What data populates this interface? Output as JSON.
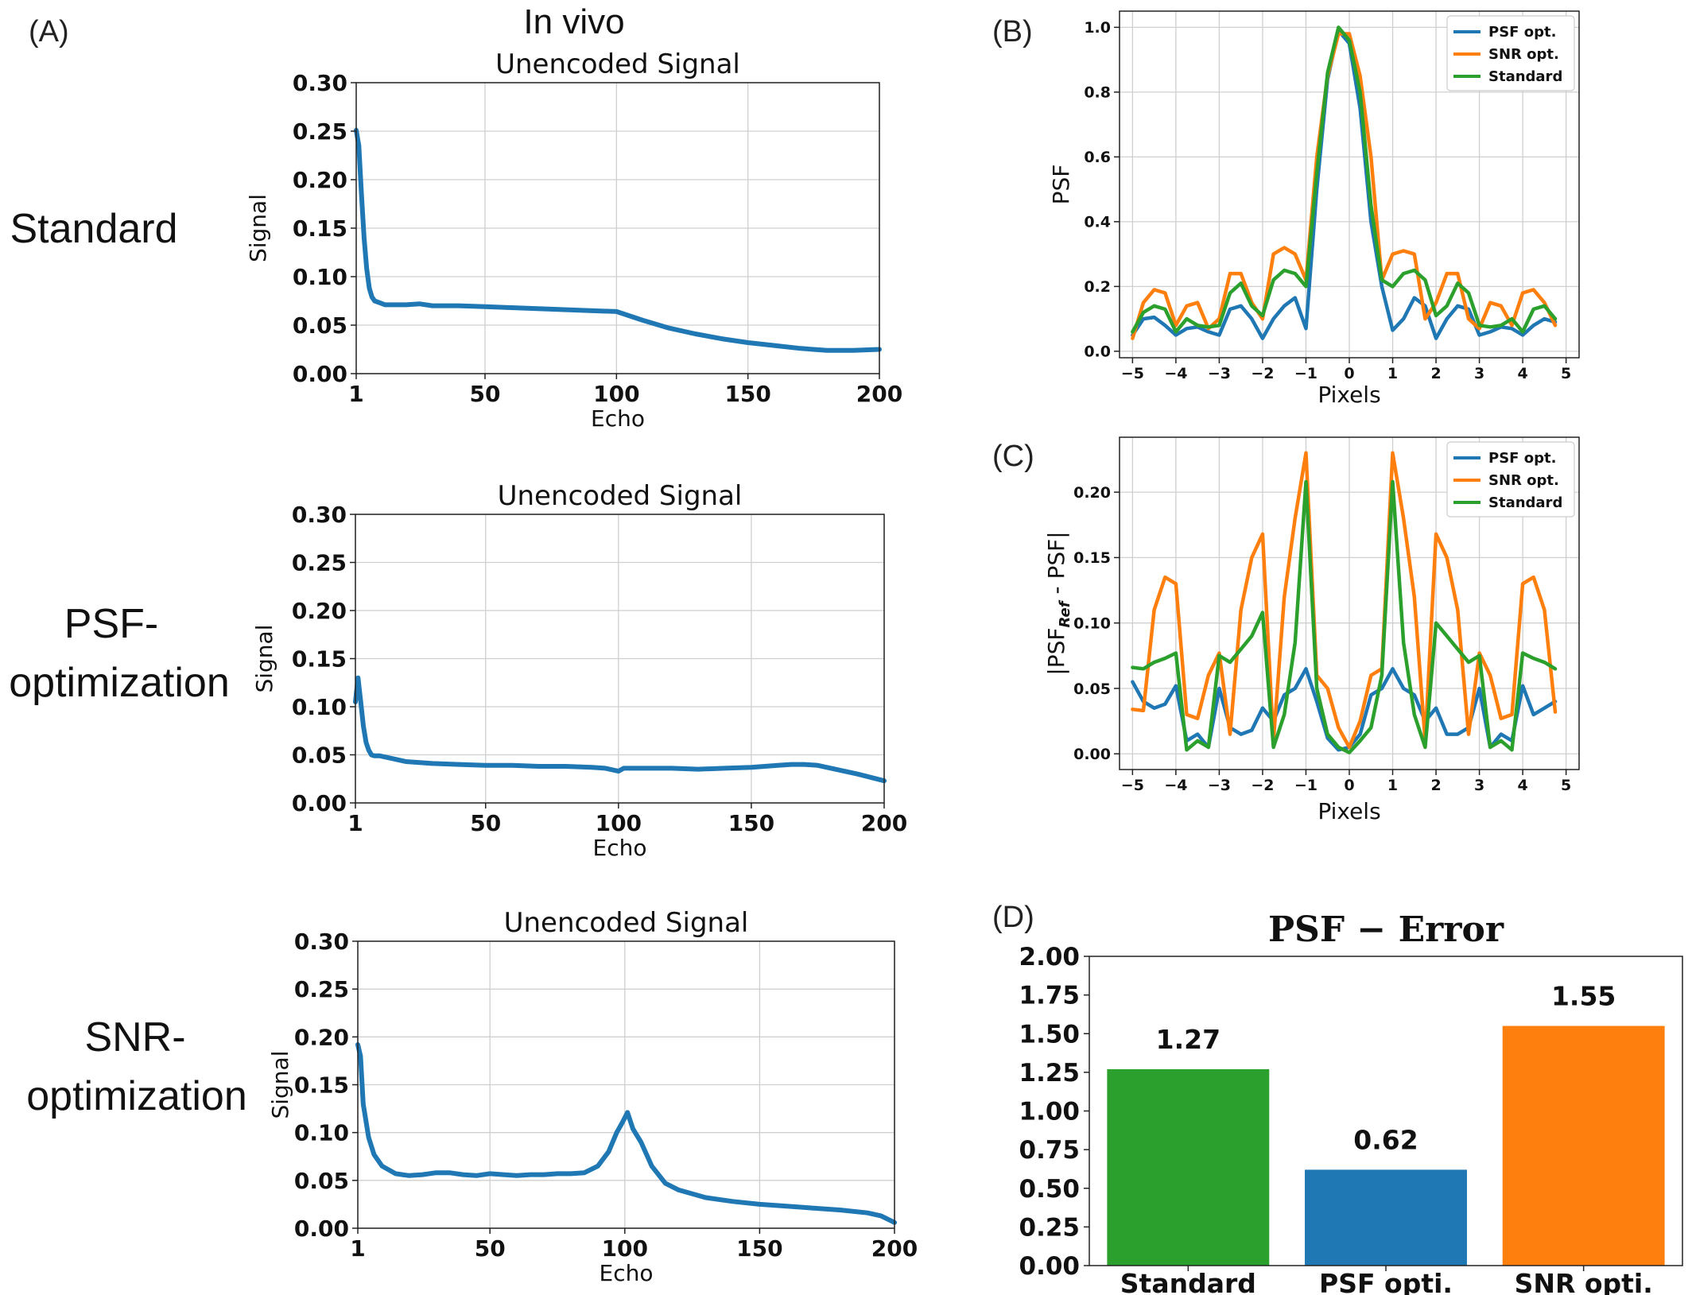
{
  "figure": {
    "super_title": "In vivo",
    "panel_labels": [
      "(A)",
      "(B)",
      "(C)",
      "(D)"
    ],
    "row_labels": [
      [
        "Standard"
      ],
      [
        "PSF-",
        "optimization"
      ],
      [
        "SNR-",
        "optimization"
      ]
    ]
  },
  "colors": {
    "blue": "#1f77b4",
    "orange": "#ff7f0e",
    "green": "#2ca02c"
  },
  "chart_data": [
    {
      "type": "line",
      "panel": "(A)",
      "row": "Standard",
      "title": "Unencoded Signal",
      "xlabel": "Echo",
      "ylabel": "Signal",
      "xlim": [
        1,
        200
      ],
      "ylim": [
        0,
        0.3
      ],
      "xticks": [
        1,
        50,
        100,
        150,
        200
      ],
      "yticks": [
        0.0,
        0.05,
        0.1,
        0.15,
        0.2,
        0.25,
        0.3
      ],
      "grid": true,
      "series": [
        {
          "color": "#1f77b4",
          "x": [
            1,
            2,
            3,
            4,
            5,
            6,
            7,
            8,
            10,
            12,
            15,
            20,
            25,
            30,
            35,
            40,
            50,
            60,
            70,
            80,
            90,
            100,
            110,
            120,
            130,
            140,
            150,
            160,
            170,
            180,
            190,
            200
          ],
          "y": [
            0.251,
            0.235,
            0.185,
            0.14,
            0.108,
            0.088,
            0.079,
            0.075,
            0.073,
            0.071,
            0.071,
            0.071,
            0.072,
            0.07,
            0.07,
            0.07,
            0.069,
            0.068,
            0.067,
            0.066,
            0.065,
            0.064,
            0.055,
            0.047,
            0.041,
            0.036,
            0.032,
            0.029,
            0.026,
            0.024,
            0.024,
            0.025
          ]
        }
      ]
    },
    {
      "type": "line",
      "panel": "(A)",
      "row": "PSF-optimization",
      "title": "Unencoded Signal",
      "xlabel": "Echo",
      "ylabel": "Signal",
      "xlim": [
        1,
        200
      ],
      "ylim": [
        0,
        0.3
      ],
      "xticks": [
        1,
        50,
        100,
        150,
        200
      ],
      "yticks": [
        0.0,
        0.05,
        0.1,
        0.15,
        0.2,
        0.25,
        0.3
      ],
      "grid": true,
      "series": [
        {
          "color": "#1f77b4",
          "x": [
            1,
            2,
            3,
            4,
            5,
            6,
            7,
            8,
            10,
            15,
            20,
            30,
            40,
            50,
            60,
            70,
            80,
            90,
            95,
            100,
            102,
            105,
            110,
            120,
            130,
            140,
            150,
            160,
            165,
            170,
            175,
            180,
            190,
            200
          ],
          "y": [
            0.105,
            0.13,
            0.105,
            0.08,
            0.063,
            0.055,
            0.05,
            0.049,
            0.049,
            0.046,
            0.043,
            0.041,
            0.04,
            0.039,
            0.039,
            0.038,
            0.038,
            0.037,
            0.036,
            0.033,
            0.036,
            0.036,
            0.036,
            0.036,
            0.035,
            0.036,
            0.037,
            0.039,
            0.04,
            0.04,
            0.039,
            0.036,
            0.03,
            0.023
          ]
        }
      ]
    },
    {
      "type": "line",
      "panel": "(A)",
      "row": "SNR-optimization",
      "title": "Unencoded Signal",
      "xlabel": "Echo",
      "ylabel": "Signal",
      "xlim": [
        1,
        200
      ],
      "ylim": [
        0,
        0.3
      ],
      "xticks": [
        1,
        50,
        100,
        150,
        200
      ],
      "yticks": [
        0.0,
        0.05,
        0.1,
        0.15,
        0.2,
        0.25,
        0.3
      ],
      "grid": true,
      "series": [
        {
          "color": "#1f77b4",
          "x": [
            1,
            2,
            3,
            5,
            7,
            10,
            15,
            20,
            25,
            30,
            35,
            40,
            45,
            50,
            55,
            60,
            65,
            70,
            75,
            80,
            85,
            90,
            94,
            97,
            99,
            101,
            103,
            106,
            110,
            115,
            120,
            130,
            140,
            150,
            160,
            170,
            180,
            190,
            195,
            200
          ],
          "y": [
            0.192,
            0.18,
            0.13,
            0.095,
            0.077,
            0.065,
            0.057,
            0.055,
            0.056,
            0.058,
            0.058,
            0.056,
            0.055,
            0.057,
            0.056,
            0.055,
            0.056,
            0.056,
            0.057,
            0.057,
            0.058,
            0.065,
            0.08,
            0.1,
            0.11,
            0.121,
            0.104,
            0.09,
            0.065,
            0.047,
            0.04,
            0.032,
            0.028,
            0.025,
            0.023,
            0.021,
            0.019,
            0.016,
            0.013,
            0.006
          ]
        }
      ]
    },
    {
      "type": "line",
      "panel": "(B)",
      "xlabel": "Pixels",
      "ylabel": "PSF",
      "xlim": [
        -5.3,
        5.3
      ],
      "ylim": [
        -0.02,
        1.05
      ],
      "xticks": [
        -5,
        -4,
        -3,
        -2,
        -1,
        0,
        1,
        2,
        3,
        4,
        5
      ],
      "xtick_labels": [
        "−5",
        "−4",
        "−3",
        "−2",
        "−1",
        "0",
        "1",
        "2",
        "3",
        "4",
        "5"
      ],
      "yticks": [
        0.0,
        0.2,
        0.4,
        0.6,
        0.8,
        1.0
      ],
      "grid": true,
      "legend": "top-right",
      "series": [
        {
          "name": "PSF opt.",
          "color": "#1f77b4",
          "x": [
            -5,
            -4.75,
            -4.5,
            -4.25,
            -4,
            -3.75,
            -3.5,
            -3.25,
            -3,
            -2.75,
            -2.5,
            -2.25,
            -2,
            -1.75,
            -1.5,
            -1.25,
            -1,
            -0.75,
            -0.5,
            -0.25,
            0,
            0.25,
            0.5,
            0.75,
            1,
            1.25,
            1.5,
            1.75,
            2,
            2.25,
            2.5,
            2.75,
            3,
            3.25,
            3.5,
            3.75,
            4,
            4.25,
            4.5,
            4.75
          ],
          "y": [
            0.05,
            0.1,
            0.105,
            0.08,
            0.05,
            0.07,
            0.075,
            0.06,
            0.05,
            0.13,
            0.14,
            0.1,
            0.04,
            0.1,
            0.14,
            0.165,
            0.07,
            0.5,
            0.84,
            0.99,
            0.95,
            0.75,
            0.4,
            0.2,
            0.065,
            0.1,
            0.165,
            0.14,
            0.04,
            0.1,
            0.14,
            0.13,
            0.05,
            0.06,
            0.075,
            0.07,
            0.05,
            0.08,
            0.1,
            0.09
          ]
        },
        {
          "name": "SNR opt.",
          "color": "#ff7f0e",
          "x": [
            -5,
            -4.75,
            -4.5,
            -4.25,
            -4,
            -3.75,
            -3.5,
            -3.25,
            -3,
            -2.75,
            -2.5,
            -2.25,
            -2,
            -1.75,
            -1.5,
            -1.25,
            -1,
            -0.75,
            -0.5,
            -0.25,
            0,
            0.25,
            0.5,
            0.75,
            1,
            1.25,
            1.5,
            1.75,
            2,
            2.25,
            2.5,
            2.75,
            3,
            3.25,
            3.5,
            3.75,
            4,
            4.25,
            4.5,
            4.75
          ],
          "y": [
            0.04,
            0.15,
            0.19,
            0.18,
            0.08,
            0.14,
            0.15,
            0.07,
            0.1,
            0.24,
            0.24,
            0.15,
            0.1,
            0.3,
            0.32,
            0.3,
            0.22,
            0.6,
            0.85,
            0.98,
            0.98,
            0.85,
            0.6,
            0.22,
            0.3,
            0.31,
            0.3,
            0.1,
            0.15,
            0.24,
            0.24,
            0.1,
            0.07,
            0.15,
            0.14,
            0.08,
            0.18,
            0.19,
            0.15,
            0.08
          ]
        },
        {
          "name": "Standard",
          "color": "#2ca02c",
          "x": [
            -5,
            -4.75,
            -4.5,
            -4.25,
            -4,
            -3.75,
            -3.5,
            -3.25,
            -3,
            -2.75,
            -2.5,
            -2.25,
            -2,
            -1.75,
            -1.5,
            -1.25,
            -1,
            -0.75,
            -0.5,
            -0.25,
            0,
            0.25,
            0.5,
            0.75,
            1,
            1.25,
            1.5,
            1.75,
            2,
            2.25,
            2.5,
            2.75,
            3,
            3.25,
            3.5,
            3.75,
            4,
            4.25,
            4.5,
            4.75
          ],
          "y": [
            0.06,
            0.12,
            0.14,
            0.13,
            0.06,
            0.1,
            0.08,
            0.075,
            0.08,
            0.18,
            0.21,
            0.14,
            0.11,
            0.22,
            0.25,
            0.24,
            0.2,
            0.55,
            0.86,
            1.0,
            0.96,
            0.8,
            0.45,
            0.22,
            0.2,
            0.24,
            0.25,
            0.22,
            0.11,
            0.14,
            0.21,
            0.18,
            0.08,
            0.075,
            0.08,
            0.1,
            0.06,
            0.13,
            0.14,
            0.1
          ]
        }
      ]
    },
    {
      "type": "line",
      "panel": "(C)",
      "xlabel": "Pixels",
      "ylabel_parts": [
        "|PSF",
        "Ref",
        " - PSF|"
      ],
      "xlim": [
        -5.3,
        5.3
      ],
      "ylim": [
        -0.012,
        0.242
      ],
      "xticks": [
        -5,
        -4,
        -3,
        -2,
        -1,
        0,
        1,
        2,
        3,
        4,
        5
      ],
      "xtick_labels": [
        "−5",
        "−4",
        "−3",
        "−2",
        "−1",
        "0",
        "1",
        "2",
        "3",
        "4",
        "5"
      ],
      "yticks": [
        0.0,
        0.05,
        0.1,
        0.15,
        0.2
      ],
      "grid": true,
      "legend": "top-right",
      "series": [
        {
          "name": "PSF opt.",
          "color": "#1f77b4",
          "x": [
            -5,
            -4.75,
            -4.5,
            -4.25,
            -4,
            -3.75,
            -3.5,
            -3.25,
            -3,
            -2.75,
            -2.5,
            -2.25,
            -2,
            -1.75,
            -1.5,
            -1.25,
            -1,
            -0.75,
            -0.5,
            -0.25,
            0,
            0.25,
            0.5,
            0.75,
            1,
            1.25,
            1.5,
            1.75,
            2,
            2.25,
            2.5,
            2.75,
            3,
            3.25,
            3.5,
            3.75,
            4,
            4.25,
            4.5,
            4.75
          ],
          "y": [
            0.055,
            0.04,
            0.035,
            0.038,
            0.052,
            0.01,
            0.015,
            0.005,
            0.05,
            0.02,
            0.015,
            0.018,
            0.035,
            0.025,
            0.045,
            0.05,
            0.065,
            0.04,
            0.012,
            0.003,
            0.005,
            0.015,
            0.045,
            0.05,
            0.065,
            0.05,
            0.045,
            0.025,
            0.035,
            0.015,
            0.015,
            0.02,
            0.05,
            0.005,
            0.015,
            0.01,
            0.052,
            0.03,
            0.035,
            0.04
          ]
        },
        {
          "name": "SNR opt.",
          "color": "#ff7f0e",
          "x": [
            -5,
            -4.75,
            -4.5,
            -4.25,
            -4,
            -3.75,
            -3.5,
            -3.25,
            -3,
            -2.75,
            -2.5,
            -2.25,
            -2,
            -1.75,
            -1.5,
            -1.25,
            -1,
            -0.75,
            -0.5,
            -0.25,
            0,
            0.25,
            0.5,
            0.75,
            1,
            1.25,
            1.5,
            1.75,
            2,
            2.25,
            2.5,
            2.75,
            3,
            3.25,
            3.5,
            3.75,
            4,
            4.25,
            4.5,
            4.75
          ],
          "y": [
            0.034,
            0.033,
            0.11,
            0.135,
            0.13,
            0.03,
            0.027,
            0.06,
            0.077,
            0.015,
            0.11,
            0.15,
            0.168,
            0.01,
            0.12,
            0.18,
            0.23,
            0.06,
            0.05,
            0.02,
            0.005,
            0.025,
            0.06,
            0.065,
            0.23,
            0.18,
            0.12,
            0.01,
            0.168,
            0.15,
            0.11,
            0.015,
            0.077,
            0.06,
            0.027,
            0.03,
            0.13,
            0.135,
            0.11,
            0.032
          ]
        },
        {
          "name": "Standard",
          "color": "#2ca02c",
          "x": [
            -5,
            -4.75,
            -4.5,
            -4.25,
            -4,
            -3.75,
            -3.5,
            -3.25,
            -3,
            -2.75,
            -2.5,
            -2.25,
            -2,
            -1.75,
            -1.5,
            -1.25,
            -1,
            -0.75,
            -0.5,
            -0.25,
            0,
            0.25,
            0.5,
            0.75,
            1,
            1.25,
            1.5,
            1.75,
            2,
            2.25,
            2.5,
            2.75,
            3,
            3.25,
            3.5,
            3.75,
            4,
            4.25,
            4.5,
            4.75
          ],
          "y": [
            0.066,
            0.065,
            0.07,
            0.073,
            0.077,
            0.003,
            0.01,
            0.005,
            0.075,
            0.07,
            0.08,
            0.09,
            0.108,
            0.005,
            0.03,
            0.085,
            0.208,
            0.05,
            0.015,
            0.005,
            0.001,
            0.01,
            0.02,
            0.06,
            0.208,
            0.085,
            0.03,
            0.005,
            0.1,
            0.09,
            0.08,
            0.07,
            0.075,
            0.005,
            0.01,
            0.003,
            0.077,
            0.073,
            0.07,
            0.065
          ]
        }
      ]
    },
    {
      "type": "bar",
      "panel": "(D)",
      "title": "PSF − Error",
      "categories": [
        "Standard",
        "PSF opti.",
        "SNR opti."
      ],
      "values": [
        1.27,
        0.62,
        1.55
      ],
      "value_labels": [
        "1.27",
        "0.62",
        "1.55"
      ],
      "colors": [
        "#2ca02c",
        "#1f77b4",
        "#ff7f0e"
      ],
      "ylim": [
        0,
        2.0
      ],
      "yticks": [
        0.0,
        0.25,
        0.5,
        0.75,
        1.0,
        1.25,
        1.5,
        1.75,
        2.0
      ],
      "grid": false
    }
  ]
}
